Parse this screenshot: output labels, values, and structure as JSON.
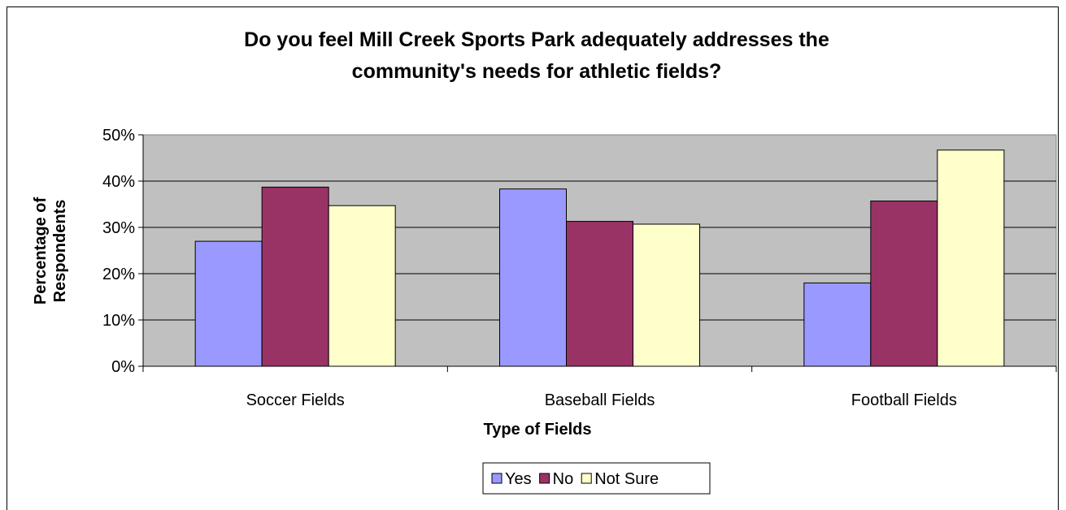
{
  "chart_data": {
    "type": "bar",
    "title_line1": "Do you feel Mill Creek Sports Park adequately addresses the",
    "title_line2": "community's needs for athletic fields?",
    "xlabel": "Type of Fields",
    "ylabel_line1": "Percentage of",
    "ylabel_line2": "Respondents",
    "categories": [
      "Soccer Fields",
      "Baseball Fields",
      "Football Fields"
    ],
    "series": [
      {
        "name": "Yes",
        "values": [
          0.27,
          0.383,
          0.18
        ],
        "color": "#9999ff"
      },
      {
        "name": "No",
        "values": [
          0.387,
          0.313,
          0.357
        ],
        "color": "#993366"
      },
      {
        "name": "Not Sure",
        "values": [
          0.347,
          0.307,
          0.467
        ],
        "color": "#ffffcc"
      }
    ],
    "ylim": [
      0,
      0.5
    ],
    "yticks": [
      "0%",
      "10%",
      "20%",
      "30%",
      "40%",
      "50%"
    ],
    "grid": true,
    "plot_background": "#c0c0c0",
    "legend_position": "bottom"
  }
}
